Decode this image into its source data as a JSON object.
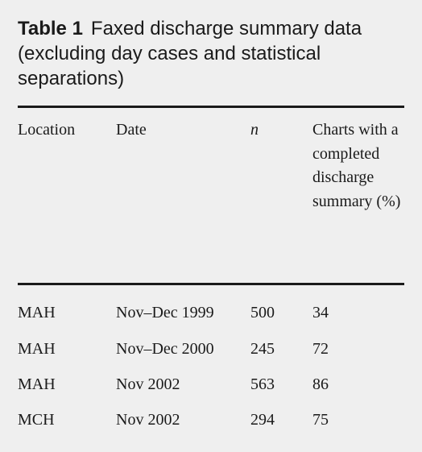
{
  "table": {
    "label": "Table 1",
    "title": "Faxed discharge summary data (excluding day cases and statistical separations)",
    "columns": [
      "Location",
      "Date",
      "n",
      "Charts with a completed discharge summary (%)"
    ],
    "rows": [
      [
        "MAH",
        "Nov–Dec 1999",
        500,
        34
      ],
      [
        "MAH",
        "Nov–Dec 2000",
        245,
        72
      ],
      [
        "MAH",
        "Nov 2002",
        563,
        86
      ],
      [
        "MCH",
        "Nov 2002",
        294,
        75
      ]
    ]
  }
}
